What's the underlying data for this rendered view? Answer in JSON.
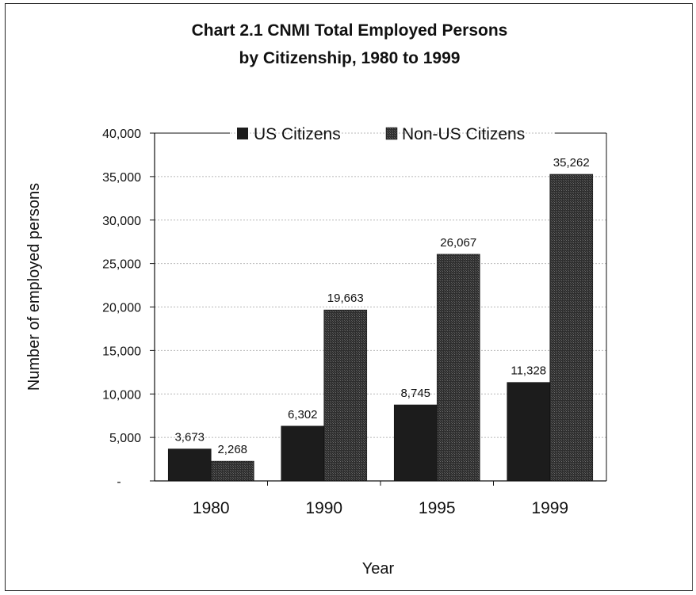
{
  "chart_data": {
    "type": "bar",
    "title": "Chart 2.1 CNMI Total Employed Persons",
    "subtitle": "by Citizenship, 1980 to 1999",
    "xlabel": "Year",
    "ylabel": "Number of employed persons",
    "categories": [
      "1980",
      "1990",
      "1995",
      "1999"
    ],
    "series": [
      {
        "name": "US Citizens",
        "values": [
          3673,
          6302,
          8745,
          11328
        ],
        "labels": [
          "3,673",
          "6,302",
          "8,745",
          "11,328"
        ],
        "color": "#1c1c1c"
      },
      {
        "name": "Non-US Citizens",
        "values": [
          2268,
          19663,
          26067,
          35262
        ],
        "labels": [
          "2,268",
          "19,663",
          "26,067",
          "35,262"
        ],
        "color": "#3d3d3d"
      }
    ],
    "ylim": [
      0,
      40000
    ],
    "yticks": [
      0,
      5000,
      10000,
      15000,
      20000,
      25000,
      30000,
      35000,
      40000
    ],
    "ytick_labels": [
      "-",
      "5,000",
      "10,000",
      "15,000",
      "20,000",
      "25,000",
      "30,000",
      "35,000",
      "40,000"
    ],
    "grid": true,
    "legend_position": "top"
  }
}
